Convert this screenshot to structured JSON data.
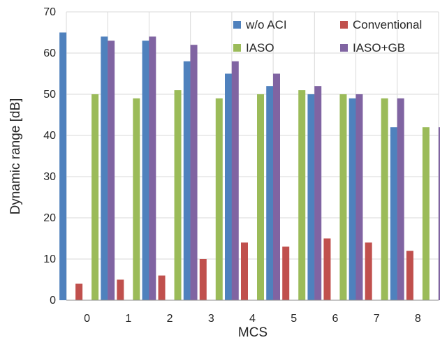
{
  "chart_data": {
    "type": "bar",
    "title": "",
    "xlabel": "MCS",
    "ylabel": "Dynamic range [dB]",
    "categories": [
      "0",
      "1",
      "2",
      "3",
      "4",
      "5",
      "6",
      "7",
      "8"
    ],
    "ylim": [
      0,
      70
    ],
    "yticks": [
      0,
      10,
      20,
      30,
      40,
      50,
      60,
      70
    ],
    "grid": true,
    "legend_position": "top-right",
    "series": [
      {
        "name": "w/o ACI",
        "color": "#4F81BD",
        "values": [
          65,
          64,
          63,
          58,
          55,
          52,
          50,
          49,
          42
        ]
      },
      {
        "name": "Conventional",
        "color": "#C0504D",
        "values": [
          4,
          5,
          6,
          10,
          14,
          13,
          15,
          14,
          12
        ]
      },
      {
        "name": "IASO",
        "color": "#9BBB59",
        "values": [
          50,
          49,
          51,
          49,
          50,
          51,
          50,
          49,
          42
        ]
      },
      {
        "name": "IASO+GB",
        "color": "#8064A2",
        "values": [
          63,
          64,
          62,
          58,
          55,
          52,
          50,
          49,
          42
        ]
      }
    ]
  }
}
